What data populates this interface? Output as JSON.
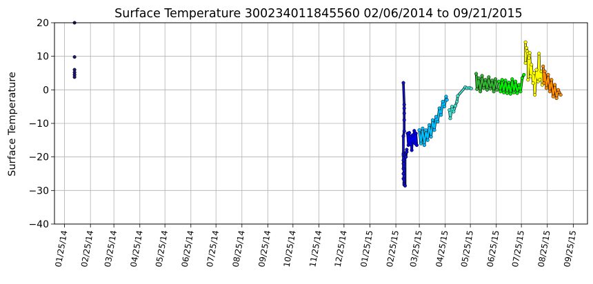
{
  "chart_data": {
    "type": "scatter",
    "title": "Surface Temperature 300234011845560  02/06/2014 to 09/21/2015",
    "xlabel": "",
    "ylabel": "Surface Temperature",
    "ylim": [
      -40,
      20
    ],
    "yticks": [
      -40,
      -30,
      -20,
      -10,
      0,
      10,
      20
    ],
    "xlim": [
      "2014-01-13",
      "2015-10-12"
    ],
    "xticks": [
      {
        "date": "2014-01-25",
        "label": "01/25/14"
      },
      {
        "date": "2014-02-25",
        "label": "02/25/14"
      },
      {
        "date": "2014-03-25",
        "label": "03/25/14"
      },
      {
        "date": "2014-04-25",
        "label": "04/25/14"
      },
      {
        "date": "2014-05-25",
        "label": "05/25/14"
      },
      {
        "date": "2014-06-25",
        "label": "06/25/14"
      },
      {
        "date": "2014-07-25",
        "label": "07/25/14"
      },
      {
        "date": "2014-08-25",
        "label": "08/25/14"
      },
      {
        "date": "2014-09-25",
        "label": "09/25/14"
      },
      {
        "date": "2014-10-25",
        "label": "10/25/14"
      },
      {
        "date": "2014-11-25",
        "label": "11/25/14"
      },
      {
        "date": "2014-12-25",
        "label": "12/25/14"
      },
      {
        "date": "2015-01-25",
        "label": "01/25/15"
      },
      {
        "date": "2015-02-25",
        "label": "02/25/15"
      },
      {
        "date": "2015-03-25",
        "label": "03/25/15"
      },
      {
        "date": "2015-04-25",
        "label": "04/25/15"
      },
      {
        "date": "2015-05-25",
        "label": "05/25/15"
      },
      {
        "date": "2015-06-25",
        "label": "06/25/15"
      },
      {
        "date": "2015-07-25",
        "label": "07/25/15"
      },
      {
        "date": "2015-08-25",
        "label": "08/25/15"
      },
      {
        "date": "2015-09-25",
        "label": "09/25/15"
      }
    ],
    "grid": true,
    "series": [
      {
        "color": "#1a1a6e",
        "points": [
          [
            "2014-02-06",
            20.0
          ],
          [
            "2014-02-06",
            9.8
          ],
          [
            "2014-02-06",
            6.0
          ],
          [
            "2014-02-06",
            5.2
          ],
          [
            "2014-02-06",
            4.5
          ],
          [
            "2014-02-06",
            3.8
          ]
        ]
      },
      {
        "color": "#1111cc",
        "points": [
          [
            "2015-03-06",
            2.1
          ],
          [
            "2015-03-07",
            -4.4
          ],
          [
            "2015-03-07",
            -5.5
          ],
          [
            "2015-03-07",
            -7.0
          ],
          [
            "2015-03-07",
            -9.0
          ],
          [
            "2015-03-07",
            -12.3
          ],
          [
            "2015-03-06",
            -13.8
          ],
          [
            "2015-03-06",
            -19.0
          ],
          [
            "2015-03-06",
            -19.5
          ],
          [
            "2015-03-06",
            -21.0
          ],
          [
            "2015-03-06",
            -22.0
          ],
          [
            "2015-03-06",
            -23.5
          ],
          [
            "2015-03-07",
            -24.0
          ],
          [
            "2015-03-06",
            -25.0
          ],
          [
            "2015-03-07",
            -25.8
          ],
          [
            "2015-03-06",
            -26.5
          ],
          [
            "2015-03-07",
            -27.0
          ],
          [
            "2015-03-07",
            -27.6
          ],
          [
            "2015-03-07",
            -28.0
          ],
          [
            "2015-03-07",
            -28.3
          ],
          [
            "2015-03-08",
            -28.6
          ],
          [
            "2015-03-08",
            -19.5
          ],
          [
            "2015-03-09",
            -18.8
          ],
          [
            "2015-03-09",
            -20.0
          ],
          [
            "2015-03-10",
            -17.8
          ],
          [
            "2015-03-10",
            -18.5
          ]
        ]
      },
      {
        "color": "#0000ee",
        "points": [
          [
            "2015-03-11",
            -13.0
          ],
          [
            "2015-03-12",
            -16.5
          ],
          [
            "2015-03-13",
            -12.8
          ],
          [
            "2015-03-14",
            -16.2
          ],
          [
            "2015-03-15",
            -14.0
          ],
          [
            "2015-03-16",
            -18.0
          ],
          [
            "2015-03-17",
            -13.5
          ],
          [
            "2015-03-18",
            -15.5
          ],
          [
            "2015-03-19",
            -12.2
          ],
          [
            "2015-03-20",
            -16.0
          ],
          [
            "2015-03-21",
            -13.0
          ],
          [
            "2015-03-22",
            -16.5
          ]
        ]
      },
      {
        "color": "#00bfff",
        "points": [
          [
            "2015-03-25",
            -12.0
          ],
          [
            "2015-03-27",
            -16.0
          ],
          [
            "2015-03-29",
            -11.5
          ],
          [
            "2015-03-31",
            -16.5
          ],
          [
            "2015-04-02",
            -12.0
          ],
          [
            "2015-04-04",
            -15.0
          ],
          [
            "2015-04-06",
            -10.5
          ],
          [
            "2015-04-08",
            -14.0
          ],
          [
            "2015-04-10",
            -9.0
          ],
          [
            "2015-04-12",
            -12.0
          ],
          [
            "2015-04-14",
            -8.0
          ],
          [
            "2015-04-16",
            -9.5
          ],
          [
            "2015-04-18",
            -5.5
          ],
          [
            "2015-04-20",
            -7.5
          ],
          [
            "2015-04-22",
            -3.5
          ],
          [
            "2015-04-24",
            -5.0
          ],
          [
            "2015-04-26",
            -2.0
          ],
          [
            "2015-04-27",
            -3.0
          ]
        ]
      },
      {
        "color": "#40e0d0",
        "points": [
          [
            "2015-04-30",
            -6.0
          ],
          [
            "2015-05-01",
            -8.5
          ],
          [
            "2015-05-03",
            -5.0
          ],
          [
            "2015-05-05",
            -6.5
          ],
          [
            "2015-05-07",
            -4.8
          ],
          [
            "2015-05-09",
            -3.5
          ],
          [
            "2015-05-10",
            -1.8
          ],
          [
            "2015-05-19",
            0.8
          ],
          [
            "2015-05-21",
            0.5
          ],
          [
            "2015-05-24",
            0.6
          ],
          [
            "2015-05-26",
            0.4
          ]
        ]
      },
      {
        "color": "#32b432",
        "points": [
          [
            "2015-06-01",
            4.8
          ],
          [
            "2015-06-02",
            0.2
          ],
          [
            "2015-06-04",
            3.5
          ],
          [
            "2015-06-06",
            -0.5
          ],
          [
            "2015-06-08",
            4.2
          ],
          [
            "2015-06-10",
            0.5
          ],
          [
            "2015-06-12",
            3.0
          ],
          [
            "2015-06-14",
            0.0
          ],
          [
            "2015-06-16",
            3.8
          ],
          [
            "2015-06-18",
            0.3
          ],
          [
            "2015-06-20",
            2.8
          ],
          [
            "2015-06-22",
            -0.5
          ],
          [
            "2015-06-24",
            3.2
          ],
          [
            "2015-06-26",
            0.0
          ]
        ]
      },
      {
        "color": "#00ee00",
        "points": [
          [
            "2015-06-28",
            2.5
          ],
          [
            "2015-06-30",
            -0.5
          ],
          [
            "2015-07-02",
            3.0
          ],
          [
            "2015-07-04",
            -0.8
          ],
          [
            "2015-07-06",
            2.8
          ],
          [
            "2015-07-08",
            -1.0
          ],
          [
            "2015-07-10",
            2.2
          ],
          [
            "2015-07-12",
            -1.2
          ],
          [
            "2015-07-14",
            3.2
          ],
          [
            "2015-07-16",
            -0.8
          ],
          [
            "2015-07-18",
            2.5
          ],
          [
            "2015-07-20",
            -1.0
          ],
          [
            "2015-07-22",
            1.5
          ],
          [
            "2015-07-24",
            -0.5
          ],
          [
            "2015-07-26",
            3.5
          ],
          [
            "2015-07-28",
            4.5
          ]
        ]
      },
      {
        "color": "#ffff00",
        "points": [
          [
            "2015-07-30",
            14.2
          ],
          [
            "2015-07-30",
            8.0
          ],
          [
            "2015-07-31",
            12.5
          ],
          [
            "2015-08-01",
            11.5
          ],
          [
            "2015-08-02",
            10.8
          ],
          [
            "2015-08-02",
            3.0
          ],
          [
            "2015-08-03",
            9.5
          ],
          [
            "2015-08-04",
            11.0
          ],
          [
            "2015-08-05",
            4.0
          ],
          [
            "2015-08-06",
            7.5
          ],
          [
            "2015-08-08",
            2.0
          ],
          [
            "2015-08-09",
            5.0
          ],
          [
            "2015-08-10",
            -1.5
          ],
          [
            "2015-08-12",
            6.0
          ],
          [
            "2015-08-14",
            2.5
          ],
          [
            "2015-08-15",
            10.8
          ],
          [
            "2015-08-16",
            3.0
          ],
          [
            "2015-08-18",
            5.5
          ],
          [
            "2015-08-19",
            1.5
          ]
        ]
      },
      {
        "color": "#ff8c00",
        "points": [
          [
            "2015-08-20",
            7.0
          ],
          [
            "2015-08-21",
            2.0
          ],
          [
            "2015-08-22",
            5.5
          ],
          [
            "2015-08-24",
            0.5
          ],
          [
            "2015-08-26",
            4.5
          ],
          [
            "2015-08-28",
            -0.5
          ],
          [
            "2015-08-30",
            3.0
          ],
          [
            "2015-09-01",
            -2.0
          ],
          [
            "2015-09-03",
            1.5
          ],
          [
            "2015-09-05",
            -2.5
          ],
          [
            "2015-09-07",
            0.0
          ],
          [
            "2015-09-10",
            -1.5
          ]
        ]
      }
    ]
  }
}
